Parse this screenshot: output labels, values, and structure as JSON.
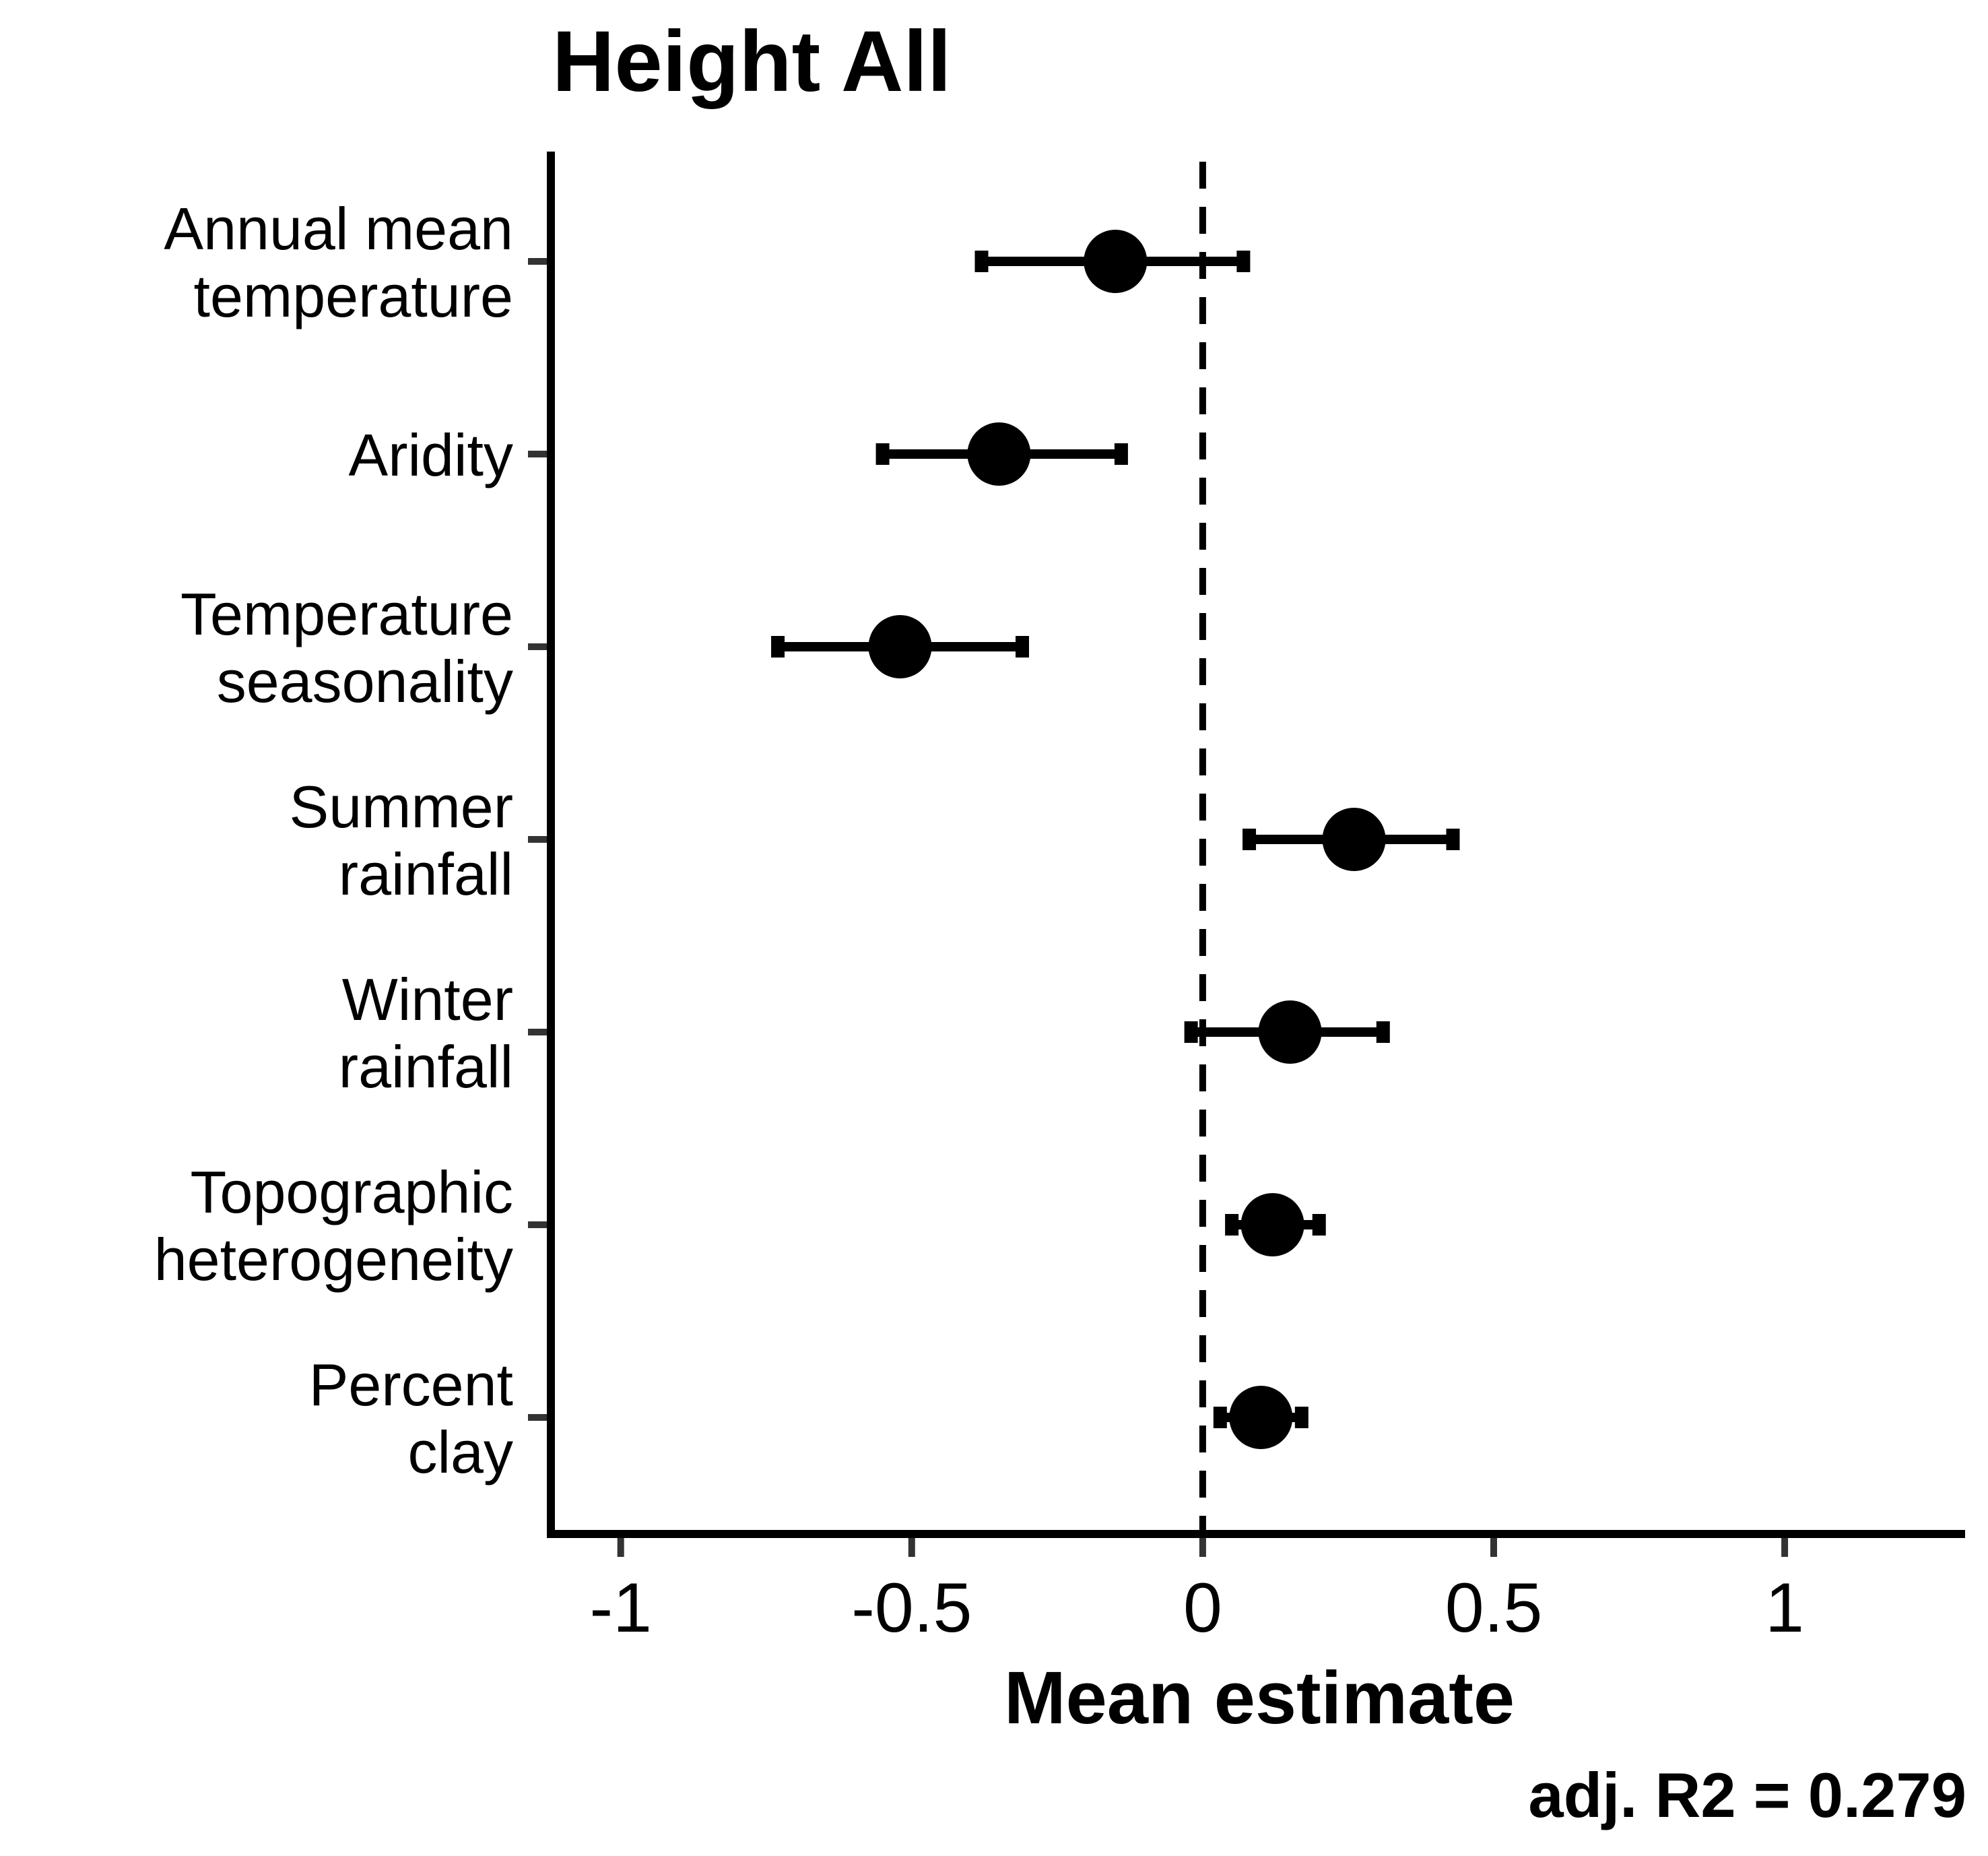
{
  "chart_data": {
    "type": "scatter",
    "title": "Height All",
    "xlabel": "Mean estimate",
    "ylabel": "",
    "xlim": [
      -1.12,
      1.31
    ],
    "x_ticks": [
      -1,
      -0.5,
      0,
      0.5,
      1
    ],
    "x_tick_labels": [
      "-1",
      "-0.5",
      "0",
      "0.5",
      "1"
    ],
    "reference_line": {
      "x": 0,
      "style": "dashed"
    },
    "grid": false,
    "legend": "none",
    "annotation": "adj. R2 = 0.279",
    "categories": [
      {
        "lines": [
          "Annual mean",
          "temperature"
        ],
        "estimate": -0.15,
        "lower": -0.38,
        "upper": 0.07
      },
      {
        "lines": [
          "Aridity"
        ],
        "estimate": -0.35,
        "lower": -0.55,
        "upper": -0.14
      },
      {
        "lines": [
          "Temperature",
          "seasonality"
        ],
        "estimate": -0.52,
        "lower": -0.73,
        "upper": -0.31
      },
      {
        "lines": [
          "Summer",
          "rainfall"
        ],
        "estimate": 0.26,
        "lower": 0.08,
        "upper": 0.43
      },
      {
        "lines": [
          "Winter",
          "rainfall"
        ],
        "estimate": 0.15,
        "lower": -0.02,
        "upper": 0.31
      },
      {
        "lines": [
          "Topographic",
          "heterogeneity"
        ],
        "estimate": 0.12,
        "lower": 0.05,
        "upper": 0.2
      },
      {
        "lines": [
          "Percent",
          "clay"
        ],
        "estimate": 0.1,
        "lower": 0.03,
        "upper": 0.17
      }
    ],
    "colors": {
      "marks": "#000000",
      "axis": "#000000",
      "ticks": "#333333"
    }
  }
}
